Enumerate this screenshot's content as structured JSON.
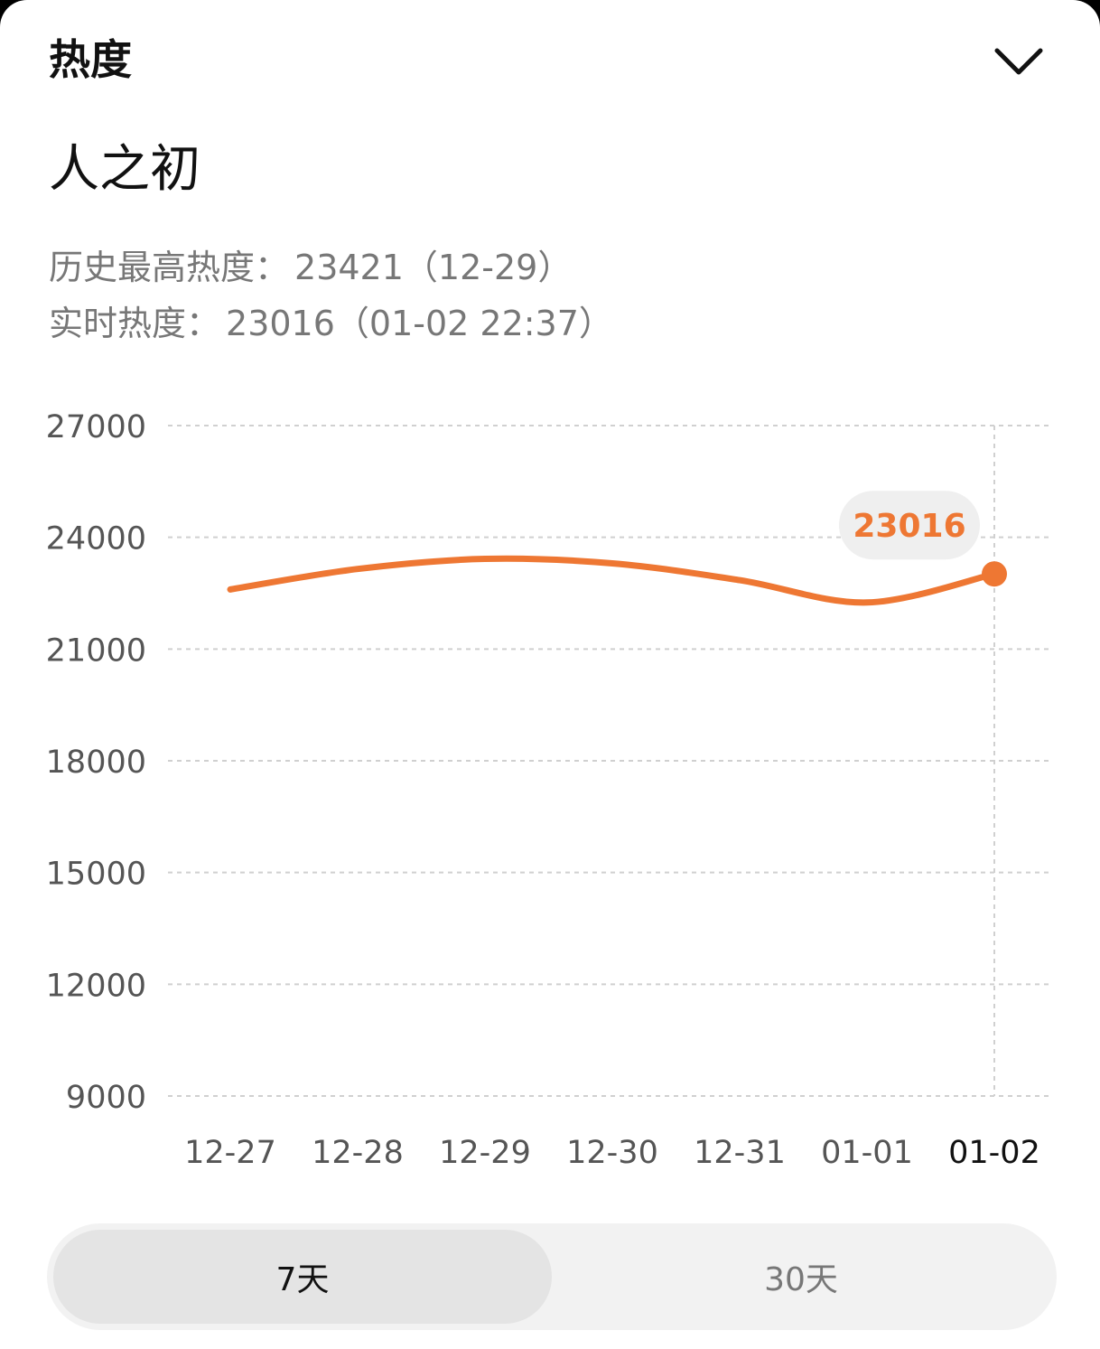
{
  "header": {
    "title": "热度"
  },
  "topic": {
    "title": "人之初"
  },
  "stats": {
    "history_label": "历史最高热度：",
    "history_value": "23421（12-29）",
    "realtime_label": "实时热度：",
    "realtime_value": "23016（01-02 22:37）"
  },
  "colors": {
    "accent": "#EE7733",
    "tooltip_bg": "#EFEFEF",
    "grid": "#D0D0D0"
  },
  "icons": {
    "collapse": "chevron-down-icon"
  },
  "chart_data": {
    "type": "line",
    "categories": [
      "12-27",
      "12-28",
      "12-29",
      "12-30",
      "12-31",
      "01-01",
      "01-02"
    ],
    "series": [
      {
        "values": [
          22600,
          23150,
          23421,
          23300,
          22850,
          22250,
          23016
        ]
      }
    ],
    "y_ticks": [
      "27000",
      "24000",
      "21000",
      "18000",
      "15000",
      "12000",
      "9000"
    ],
    "ylim": [
      9000,
      27000
    ],
    "grid": true,
    "highlight": {
      "category": "01-02",
      "label": "23016"
    }
  },
  "range_tabs": [
    {
      "label": "7天",
      "selected": true
    },
    {
      "label": "30天",
      "selected": false
    }
  ]
}
